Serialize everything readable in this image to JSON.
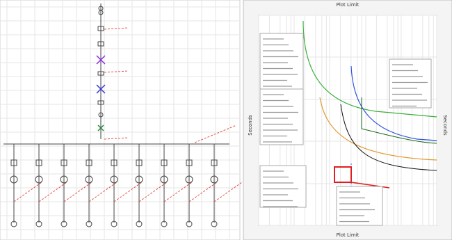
{
  "plot": {
    "top_label": "Plot Limit",
    "bottom_label": "Plot Limit",
    "y_label_left": "Seconds",
    "y_label_right": "Seconds"
  }
}
